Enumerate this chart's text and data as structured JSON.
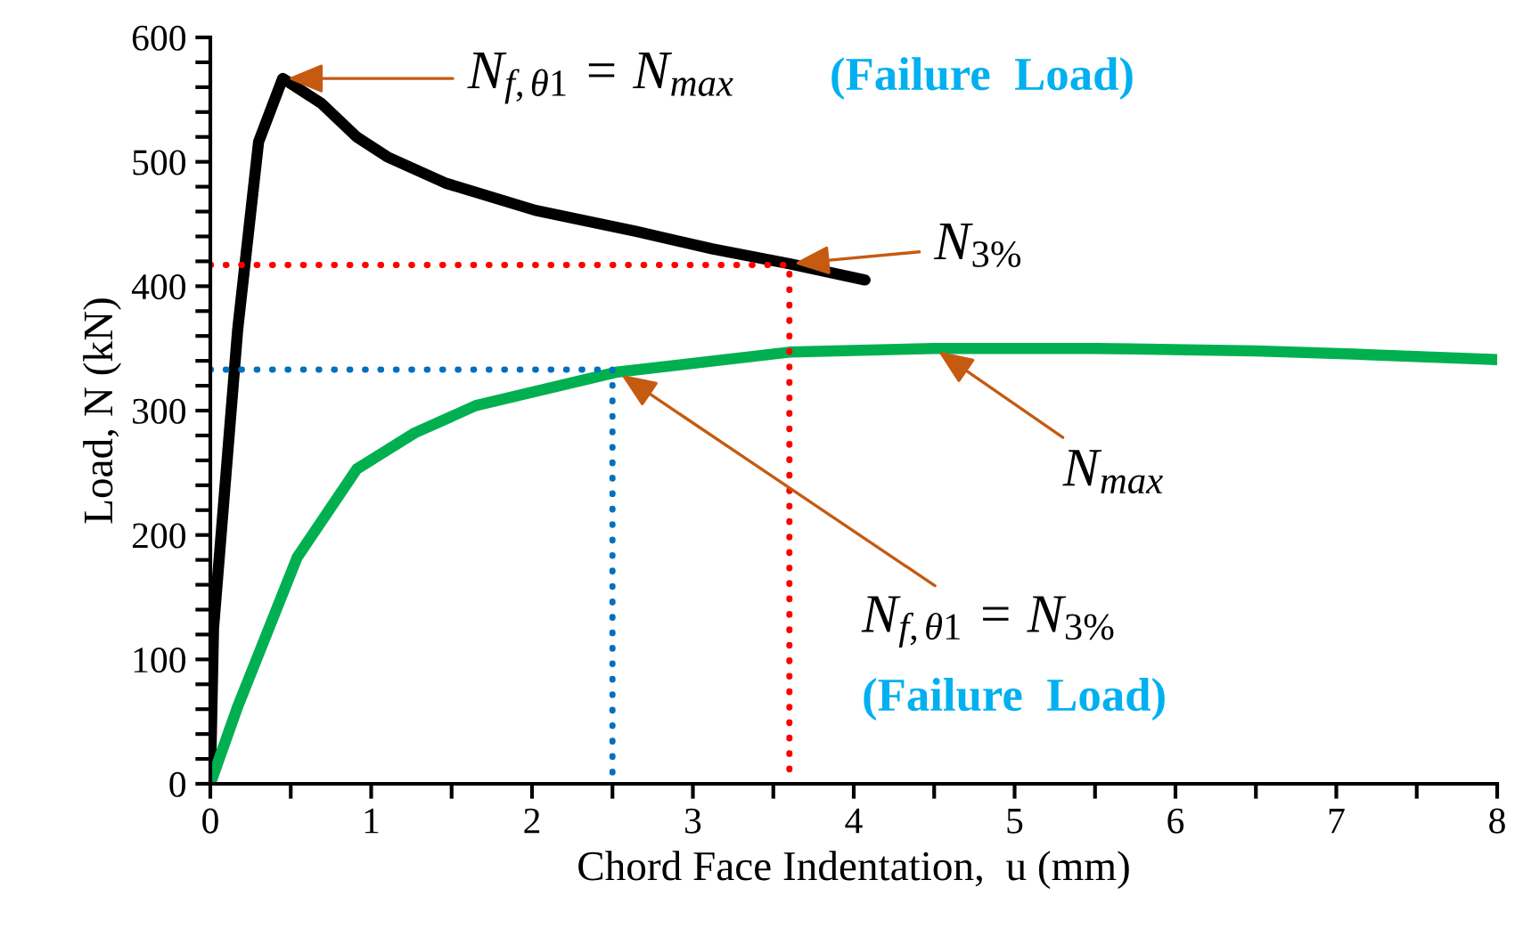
{
  "chart_data": {
    "type": "line",
    "xlabel": "Chord Face Indentation,  u (mm)",
    "ylabel": "Load, N (kN)",
    "xlim": [
      0,
      8
    ],
    "ylim": [
      0,
      600
    ],
    "xticks": [
      0,
      {
        "value": 0.5,
        "label": null
      },
      1,
      {
        "value": 1.5,
        "label": null
      },
      2,
      {
        "value": 2.5,
        "label": null
      },
      3,
      {
        "value": 3.5,
        "label": null
      },
      4,
      {
        "value": 4.5,
        "label": null
      },
      5,
      {
        "value": 5.5,
        "label": null
      },
      6,
      {
        "value": 6.5,
        "label": null
      },
      7,
      {
        "value": 7.5,
        "label": null
      },
      8
    ],
    "yticks": [
      0,
      {
        "value": 20,
        "label": null
      },
      {
        "value": 40,
        "label": null
      },
      {
        "value": 60,
        "label": null
      },
      {
        "value": 80,
        "label": null
      },
      100,
      {
        "value": 120,
        "label": null
      },
      {
        "value": 140,
        "label": null
      },
      {
        "value": 160,
        "label": null
      },
      {
        "value": 180,
        "label": null
      },
      200,
      {
        "value": 220,
        "label": null
      },
      {
        "value": 240,
        "label": null
      },
      {
        "value": 260,
        "label": null
      },
      {
        "value": 280,
        "label": null
      },
      300,
      {
        "value": 320,
        "label": null
      },
      {
        "value": 340,
        "label": null
      },
      {
        "value": 360,
        "label": null
      },
      {
        "value": 380,
        "label": null
      },
      400,
      {
        "value": 420,
        "label": null
      },
      {
        "value": 440,
        "label": null
      },
      {
        "value": 460,
        "label": null
      },
      {
        "value": 480,
        "label": null
      },
      500,
      {
        "value": 520,
        "label": null
      },
      {
        "value": 540,
        "label": null
      },
      {
        "value": 560,
        "label": null
      },
      {
        "value": 580,
        "label": null
      },
      600
    ],
    "grid": false,
    "legend": false,
    "marker": "none",
    "series": [
      {
        "color": "#000000",
        "line_style": "solid",
        "x": [
          0,
          0.02,
          0.17,
          0.3,
          0.45,
          0.69,
          0.91,
          1.1,
          1.46,
          2.02,
          2.65,
          3.12,
          3.6,
          4.07
        ],
        "values": [
          0,
          125,
          365,
          516,
          567,
          547,
          520,
          504,
          483,
          461,
          444,
          430,
          418,
          405
        ]
      },
      {
        "color": "#00b050",
        "line_style": "solid",
        "x": [
          0,
          0.17,
          0.54,
          0.91,
          1.27,
          1.65,
          2.53,
          3.6,
          4.5,
          5.5,
          6.5,
          7.2,
          8
        ],
        "values": [
          0,
          62,
          182,
          253,
          282,
          304,
          331,
          347,
          350,
          350,
          348,
          345,
          341
        ]
      },
      {
        "color": "#ff0000",
        "line_style": "dotted",
        "x": [
          0,
          3.6,
          3.6
        ],
        "values": [
          417,
          417,
          0
        ]
      },
      {
        "color": "#0070c0",
        "line_style": "dotted",
        "x": [
          0,
          2.5,
          2.5
        ],
        "values": [
          333,
          333,
          0
        ]
      }
    ],
    "annotations": [
      {
        "text": "N$_{f,θ1}$ = N$_{max}$",
        "x": 0.45,
        "y": 567
      },
      "(Failure  Load)",
      {
        "text": "N$_{3%}$",
        "x": 3.6,
        "y": 418
      },
      {
        "text": "N$_{max}$",
        "x": 4.5,
        "y": 350
      },
      {
        "text": "N$_{f,θ1}$ = N$_{3%}$",
        "x": 2.53,
        "y": 331
      },
      "(Failure  Load)"
    ]
  }
}
